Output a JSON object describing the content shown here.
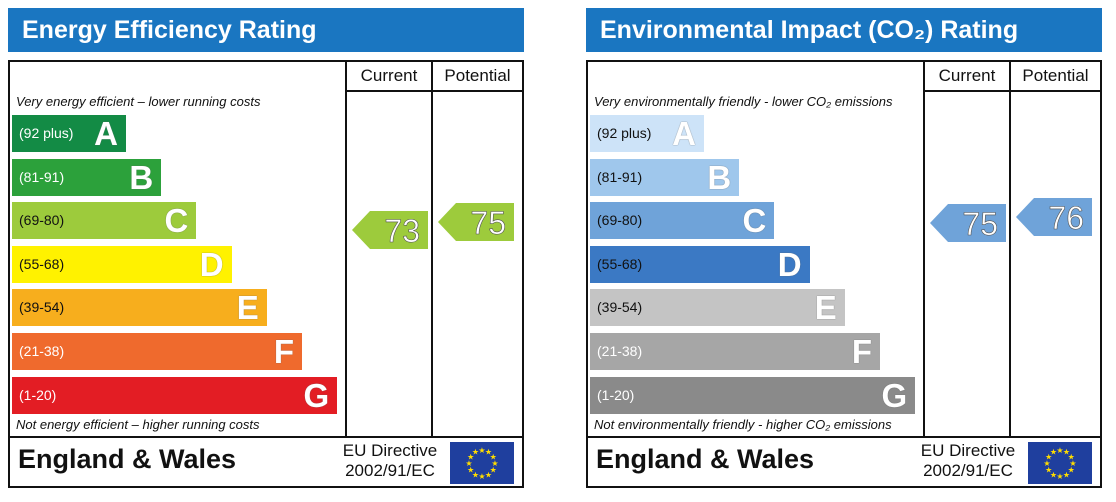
{
  "charts": [
    {
      "title": "Energy Efficiency Rating",
      "col_current": "Current",
      "col_potential": "Potential",
      "caption_top": "Very energy efficient – lower running costs",
      "caption_bottom": "Not energy efficient – higher running costs",
      "footer_region": "England & Wales",
      "footer_directive_1": "EU Directive",
      "footer_directive_2": "2002/91/EC",
      "bands": [
        {
          "range": "(92 plus)",
          "letter": "A",
          "color": "#138b45",
          "range_color": "#ffffff",
          "letter_color": "#ffffff"
        },
        {
          "range": "(81-91)",
          "letter": "B",
          "color": "#2ca13b",
          "range_color": "#ffffff",
          "letter_color": "#ffffff"
        },
        {
          "range": "(69-80)",
          "letter": "C",
          "color": "#9dcb3c",
          "range_color": "#111111",
          "letter_color": "#ffffff"
        },
        {
          "range": "(55-68)",
          "letter": "D",
          "color": "#fff200",
          "range_color": "#111111",
          "letter_color": "#ffffff"
        },
        {
          "range": "(39-54)",
          "letter": "E",
          "color": "#f7ae1d",
          "range_color": "#111111",
          "letter_color": "#ffffff"
        },
        {
          "range": "(21-38)",
          "letter": "F",
          "color": "#ef6a2d",
          "range_color": "#ffffff",
          "letter_color": "#ffffff"
        },
        {
          "range": "(1-20)",
          "letter": "G",
          "color": "#e31d24",
          "range_color": "#ffffff",
          "letter_color": "#ffffff"
        }
      ],
      "current": {
        "value": "73",
        "band": "C",
        "color": "#9dcb3c"
      },
      "potential": {
        "value": "75",
        "band": "C",
        "color": "#9dcb3c"
      }
    },
    {
      "title": "Environmental Impact (CO₂) Rating",
      "col_current": "Current",
      "col_potential": "Potential",
      "caption_top": "Very environmentally friendly - lower CO₂ emissions",
      "caption_bottom": "Not environmentally friendly - higher CO₂ emissions",
      "footer_region": "England & Wales",
      "footer_directive_1": "EU Directive",
      "footer_directive_2": "2002/91/EC",
      "bands": [
        {
          "range": "(92 plus)",
          "letter": "A",
          "color": "#cde3f8",
          "range_color": "#111111",
          "letter_color": "#ffffff"
        },
        {
          "range": "(81-91)",
          "letter": "B",
          "color": "#9fc7ec",
          "range_color": "#111111",
          "letter_color": "#ffffff"
        },
        {
          "range": "(69-80)",
          "letter": "C",
          "color": "#6fa3d9",
          "range_color": "#111111",
          "letter_color": "#ffffff"
        },
        {
          "range": "(55-68)",
          "letter": "D",
          "color": "#3b79c4",
          "range_color": "#111111",
          "letter_color": "#ffffff"
        },
        {
          "range": "(39-54)",
          "letter": "E",
          "color": "#c4c4c4",
          "range_color": "#111111",
          "letter_color": "#ffffff"
        },
        {
          "range": "(21-38)",
          "letter": "F",
          "color": "#a6a6a6",
          "range_color": "#ffffff",
          "letter_color": "#ffffff"
        },
        {
          "range": "(1-20)",
          "letter": "G",
          "color": "#8a8a8a",
          "range_color": "#ffffff",
          "letter_color": "#ffffff"
        }
      ],
      "current": {
        "value": "75",
        "band": "C",
        "color": "#6fa3d9"
      },
      "potential": {
        "value": "76",
        "band": "C",
        "color": "#6fa3d9"
      }
    }
  ],
  "chart_data": [
    {
      "type": "bar",
      "title": "Energy Efficiency Rating",
      "categories": [
        "A",
        "B",
        "C",
        "D",
        "E",
        "F",
        "G"
      ],
      "category_ranges": [
        "(92 plus)",
        "(81-91)",
        "(69-80)",
        "(55-68)",
        "(39-54)",
        "(21-38)",
        "(1-20)"
      ],
      "series": [
        {
          "name": "Current",
          "value": 73,
          "band": "C"
        },
        {
          "name": "Potential",
          "value": 75,
          "band": "C"
        }
      ]
    },
    {
      "type": "bar",
      "title": "Environmental Impact (CO₂) Rating",
      "categories": [
        "A",
        "B",
        "C",
        "D",
        "E",
        "F",
        "G"
      ],
      "category_ranges": [
        "(92 plus)",
        "(81-91)",
        "(69-80)",
        "(55-68)",
        "(39-54)",
        "(21-38)",
        "(1-20)"
      ],
      "series": [
        {
          "name": "Current",
          "value": 75,
          "band": "C"
        },
        {
          "name": "Potential",
          "value": 76,
          "band": "C"
        }
      ]
    }
  ]
}
